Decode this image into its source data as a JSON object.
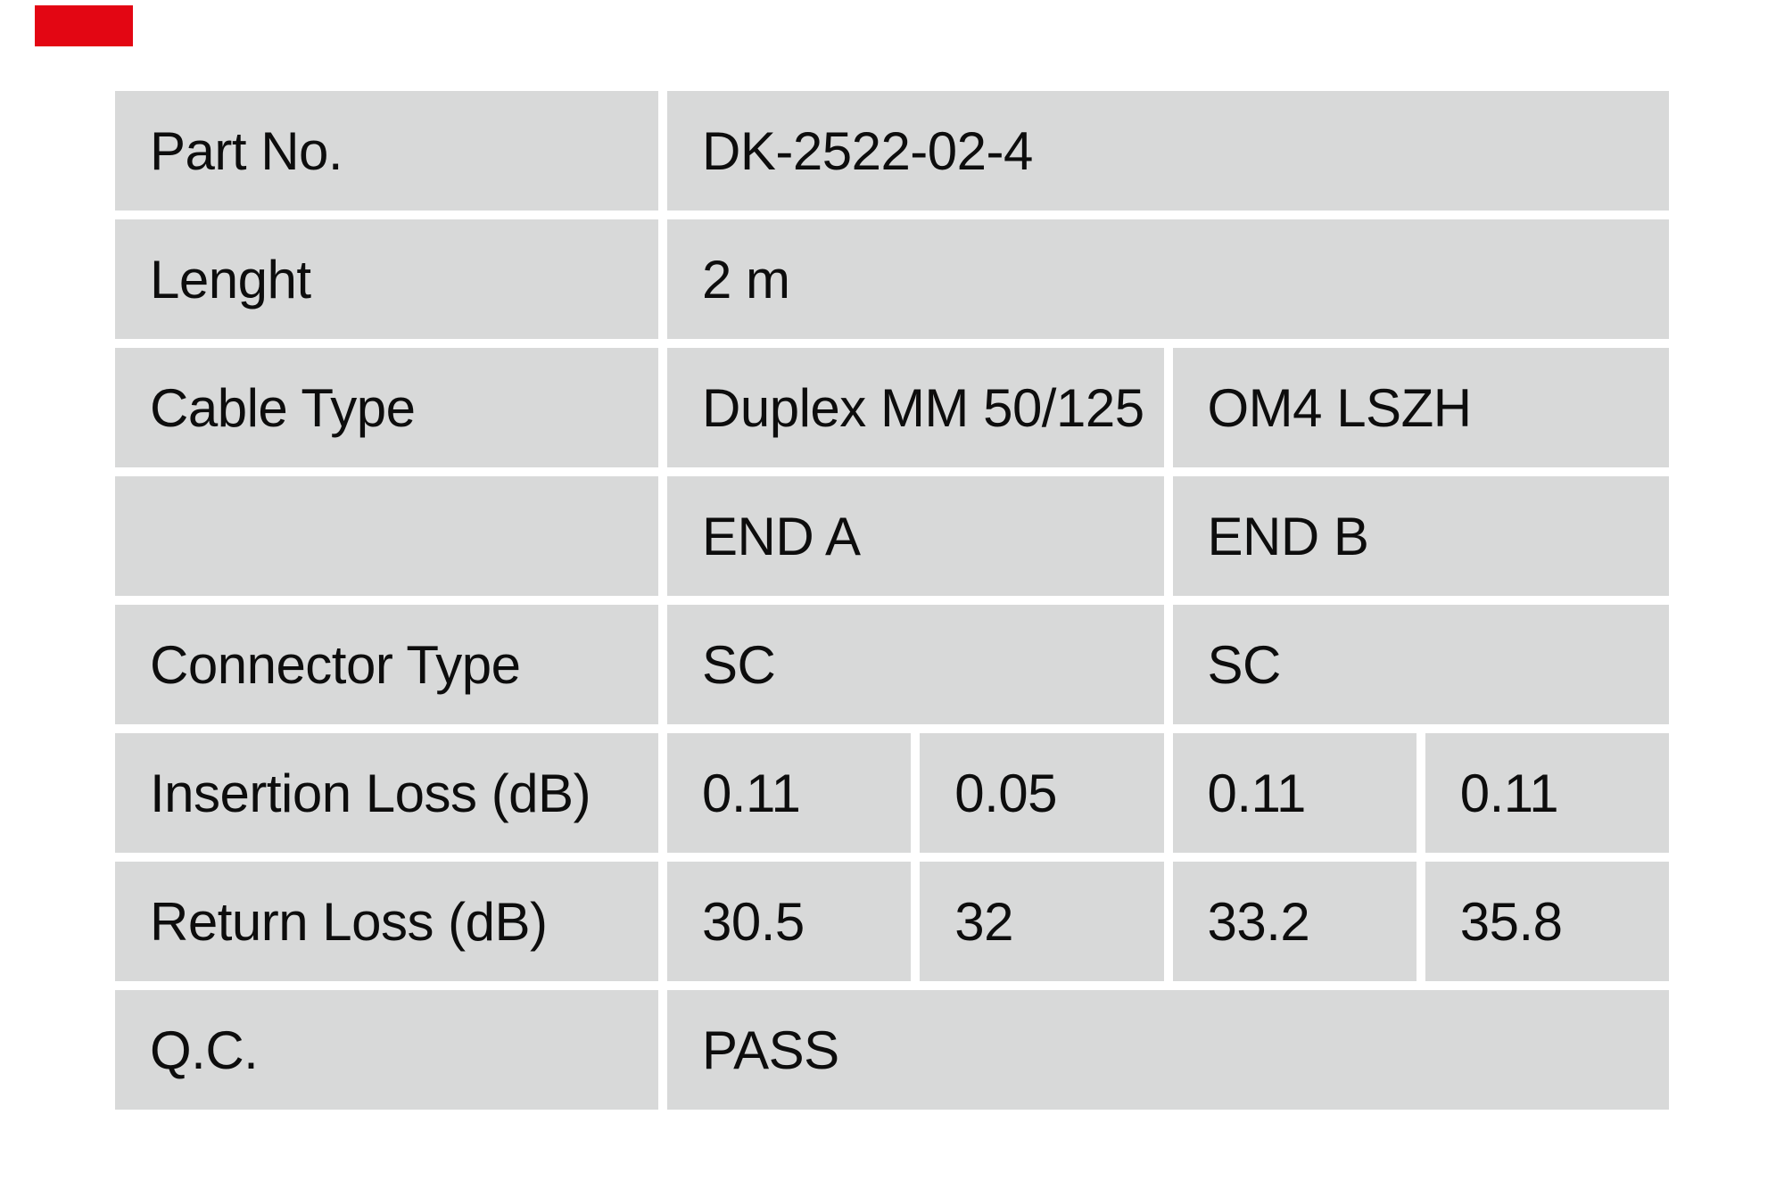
{
  "page": {
    "background_color": "#ffffff",
    "brand_mark_color": "#e30613"
  },
  "table": {
    "cell_background_color": "#d8d9d9",
    "text_color": "#0d0d0d",
    "rows": [
      {
        "label": "Part No.",
        "values": [
          "DK-2522-02-4"
        ]
      },
      {
        "label": "Lenght",
        "values": [
          "2 m"
        ]
      },
      {
        "label": "Cable Type",
        "values": [
          "Duplex MM 50/125",
          "OM4 LSZH"
        ]
      },
      {
        "label": "",
        "values": [
          "END A",
          "END B"
        ]
      },
      {
        "label": "Connector Type",
        "values": [
          "SC",
          "SC"
        ]
      },
      {
        "label": "Insertion Loss (dB)",
        "values": [
          "0.11",
          "0.05",
          "0.11",
          "0.11"
        ]
      },
      {
        "label": "Return Loss (dB)",
        "values": [
          "30.5",
          "32",
          "33.2",
          "35.8"
        ]
      },
      {
        "label": "Q.C.",
        "values": [
          "PASS"
        ]
      }
    ]
  }
}
